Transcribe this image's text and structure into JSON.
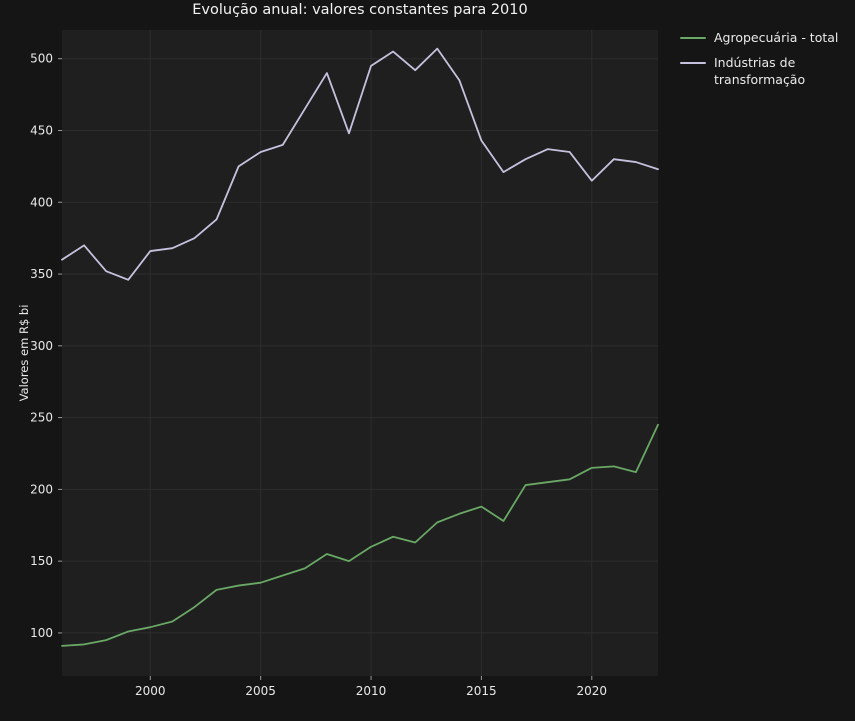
{
  "chart_data": {
    "type": "line",
    "title": "Evolução anual: valores constantes para 2010",
    "xlabel": "",
    "ylabel": "Valores em R$ bi",
    "x": [
      1996,
      1997,
      1998,
      1999,
      2000,
      2001,
      2002,
      2003,
      2004,
      2005,
      2006,
      2007,
      2008,
      2009,
      2010,
      2011,
      2012,
      2013,
      2014,
      2015,
      2016,
      2017,
      2018,
      2019,
      2020,
      2021,
      2022,
      2023
    ],
    "series": [
      {
        "name": "Agropecuária - total",
        "color": "#69a865",
        "values": [
          91,
          92,
          95,
          101,
          104,
          108,
          118,
          130,
          133,
          135,
          140,
          145,
          155,
          150,
          160,
          167,
          163,
          177,
          183,
          188,
          178,
          203,
          205,
          207,
          215,
          216,
          212,
          245
        ]
      },
      {
        "name": "Indústrias de transformação",
        "color": "#c6c1de",
        "values": [
          360,
          370,
          352,
          346,
          366,
          368,
          375,
          388,
          425,
          435,
          440,
          465,
          490,
          448,
          495,
          505,
          492,
          507,
          485,
          443,
          421,
          430,
          437,
          435,
          415,
          430,
          428,
          423
        ]
      }
    ],
    "xlim": [
      1996,
      2023
    ],
    "ylim": [
      70,
      520
    ],
    "xticks": [
      2000,
      2005,
      2010,
      2015,
      2020
    ],
    "yticks": [
      100,
      150,
      200,
      250,
      300,
      350,
      400,
      450,
      500
    ],
    "grid": true,
    "legend_position": "outside-upper-right",
    "colors": {
      "figure_bg": "#151515",
      "plot_bg": "#1f1f1f",
      "grid": "#2d2d2d",
      "tick_label": "#e8e8e8",
      "title": "#f2f2f2"
    }
  }
}
